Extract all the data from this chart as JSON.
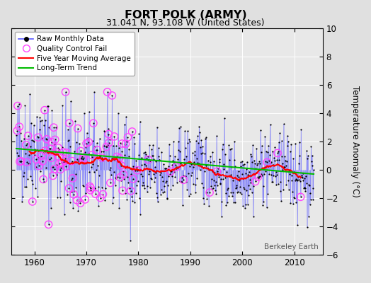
{
  "title": "FORT POLK (ARMY)",
  "subtitle": "31.041 N, 93.108 W (United States)",
  "ylabel": "Temperature Anomaly (°C)",
  "credit": "Berkeley Earth",
  "xlim": [
    1955.5,
    2015.5
  ],
  "ylim": [
    -6,
    10
  ],
  "yticks": [
    -6,
    -4,
    -2,
    0,
    2,
    4,
    6,
    8,
    10
  ],
  "xticks": [
    1960,
    1970,
    1980,
    1990,
    2000,
    2010
  ],
  "bg_color": "#e0e0e0",
  "plot_bg_color": "#e8e8e8",
  "raw_line_color": "#5555ff",
  "raw_dot_color": "#000000",
  "qc_fail_color": "#ff44ff",
  "moving_avg_color": "#ff0000",
  "trend_color": "#00bb00",
  "seed": 42,
  "n_months": 684,
  "start_year": 1956.5,
  "end_year": 2013.75
}
